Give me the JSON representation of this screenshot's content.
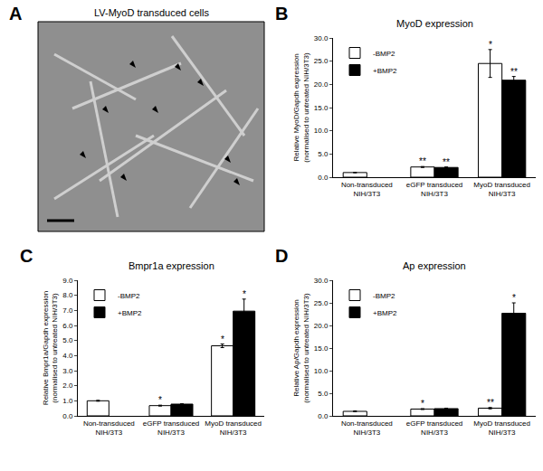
{
  "image_panel": {
    "panel": "A",
    "title": "LV-MyoD transduced cells"
  },
  "chart_data": [
    {
      "type": "bar",
      "panel": "B",
      "title": "MyoD expression",
      "ylabel": "Relative MyoD/Gapdh expression\n(normalised to untreated NIH/3T3)",
      "categories": [
        "Non-transduced\nNIH/3T3",
        "eGFP transduced\nNIH/3T3",
        "MyoD transduced\nNIH/3T3"
      ],
      "series": [
        {
          "name": "-BMP2",
          "color": "#ffffff",
          "values": [
            1.0,
            2.2,
            24.5
          ],
          "errors": [
            0.05,
            0.1,
            3.0
          ],
          "significance": [
            null,
            "**",
            "*"
          ]
        },
        {
          "name": "+BMP2",
          "color": "#000000",
          "values": [
            null,
            2.1,
            20.9
          ],
          "errors": [
            null,
            0.1,
            0.8
          ],
          "significance": [
            null,
            "**",
            "**"
          ]
        }
      ],
      "ylim": [
        0,
        30
      ],
      "yticks": [
        {
          "value": 0,
          "label": "0.0"
        },
        {
          "value": 5,
          "label": "5.0"
        },
        {
          "value": 10,
          "label": "10.0"
        },
        {
          "value": 15,
          "label": "15.0"
        },
        {
          "value": 20,
          "label": "20.0"
        },
        {
          "value": 25,
          "label": "25.0"
        },
        {
          "value": 30,
          "label": "30.0"
        }
      ],
      "grid": false,
      "legend": "top left"
    },
    {
      "type": "bar",
      "panel": "C",
      "title": "Bmpr1a expression",
      "ylabel": "Relative Bmpr1a/Gapdh expression\n(normalised to untreated NIH/3T3)",
      "categories": [
        "Non-transduced\nNIH/3T3",
        "eGFP transduced\nNIH/3T3",
        "MyoD transduced\nNIH/3T3"
      ],
      "series": [
        {
          "name": "-BMP2",
          "color": "#ffffff",
          "values": [
            1.0,
            0.68,
            4.65
          ],
          "errors": [
            0.03,
            0.03,
            0.12
          ],
          "significance": [
            null,
            "*",
            "*"
          ]
        },
        {
          "name": "+BMP2",
          "color": "#000000",
          "values": [
            null,
            0.78,
            6.95
          ],
          "errors": [
            null,
            0.02,
            0.8
          ],
          "significance": [
            null,
            null,
            "*"
          ]
        }
      ],
      "ylim": [
        0,
        9
      ],
      "yticks": [
        {
          "value": 0,
          "label": "0.0"
        },
        {
          "value": 1,
          "label": "1.0"
        },
        {
          "value": 2,
          "label": "2.0"
        },
        {
          "value": 3,
          "label": "3.0"
        },
        {
          "value": 4,
          "label": "4.0"
        },
        {
          "value": 5,
          "label": "5.0"
        },
        {
          "value": 6,
          "label": "6.0"
        },
        {
          "value": 7,
          "label": "7.0"
        },
        {
          "value": 8,
          "label": "8.0"
        },
        {
          "value": 9,
          "label": "9.0"
        }
      ],
      "grid": false,
      "legend": "top left"
    },
    {
      "type": "bar",
      "panel": "D",
      "title": "Ap expression",
      "ylabel": "Relative Ap/Gapdh expression\n(normalised to untreated NIH/3T3)",
      "categories": [
        "Non-transduced\nNIH/3T3",
        "eGFP transduced\nNIH/3T3",
        "MyoD transduced\nNIH/3T3"
      ],
      "series": [
        {
          "name": "-BMP2",
          "color": "#ffffff",
          "values": [
            1.0,
            1.5,
            1.7
          ],
          "errors": [
            0.1,
            0.1,
            0.15
          ],
          "significance": [
            null,
            "*",
            "**"
          ]
        },
        {
          "name": "+BMP2",
          "color": "#000000",
          "values": [
            null,
            1.6,
            22.7
          ],
          "errors": [
            null,
            0.1,
            2.3
          ],
          "significance": [
            null,
            null,
            "*"
          ]
        }
      ],
      "ylim": [
        0,
        30
      ],
      "yticks": [
        {
          "value": 0,
          "label": "0.0"
        },
        {
          "value": 5,
          "label": "5.0"
        },
        {
          "value": 10,
          "label": "10.0"
        },
        {
          "value": 15,
          "label": "15.0"
        },
        {
          "value": 20,
          "label": "20.0"
        },
        {
          "value": 25,
          "label": "25.0"
        },
        {
          "value": 30,
          "label": "30.0"
        }
      ],
      "grid": false,
      "legend": "top left"
    }
  ]
}
